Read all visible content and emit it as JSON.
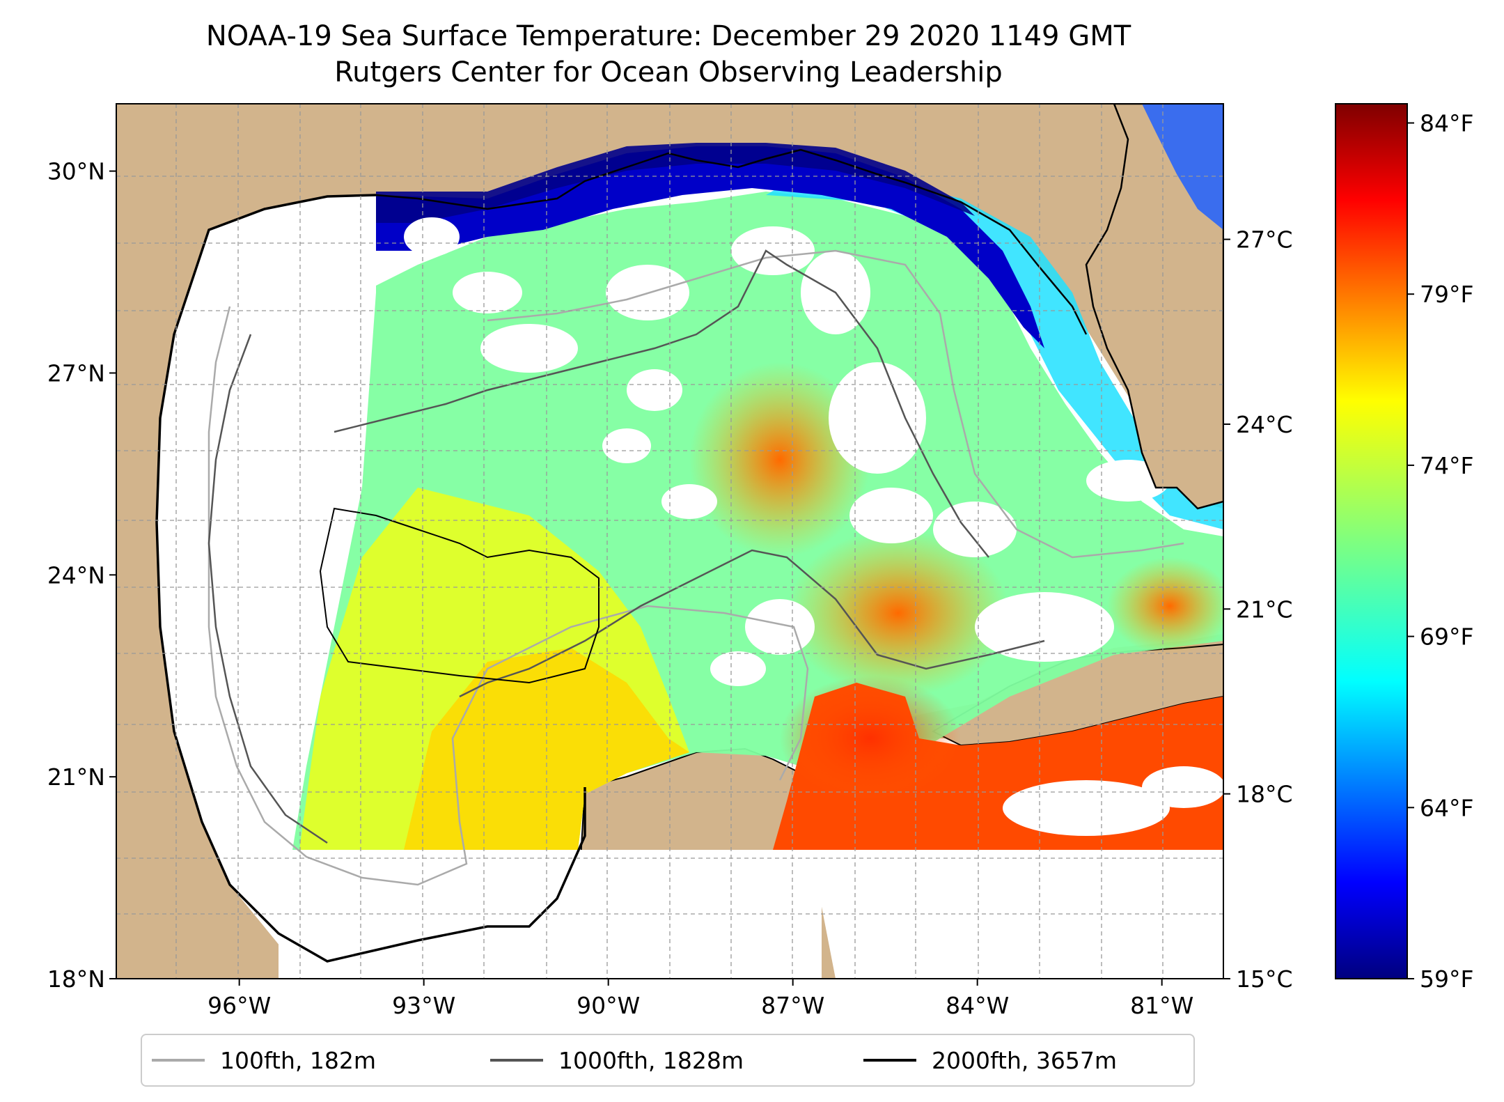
{
  "title": "NOAA-19 Sea Surface Temperature: December 29 2020 1149 GMT",
  "subtitle": "Rutgers Center for Ocean Observing Leadership",
  "map": {
    "lat_range": [
      18,
      31
    ],
    "lon_range": [
      -98,
      -80
    ],
    "lat_labels": [
      {
        "value": 18,
        "text": "18°N"
      },
      {
        "value": 21,
        "text": "21°N"
      },
      {
        "value": 24,
        "text": "24°N"
      },
      {
        "value": 27,
        "text": "27°N"
      },
      {
        "value": 30,
        "text": "30°N"
      }
    ],
    "lon_labels": [
      {
        "value": -96,
        "text": "96°W"
      },
      {
        "value": -93,
        "text": "93°W"
      },
      {
        "value": -90,
        "text": "90°W"
      },
      {
        "value": -87,
        "text": "87°W"
      },
      {
        "value": -84,
        "text": "84°W"
      },
      {
        "value": -81,
        "text": "81°W"
      }
    ],
    "land_color": "#d2b48c",
    "no_data_color": "#ffffff"
  },
  "colorbar": {
    "range_c": [
      15,
      29.2
    ],
    "celsius_ticks": [
      {
        "value": 15,
        "text": "15°C"
      },
      {
        "value": 18,
        "text": "18°C"
      },
      {
        "value": 21,
        "text": "21°C"
      },
      {
        "value": 24,
        "text": "24°C"
      },
      {
        "value": 27,
        "text": "27°C"
      }
    ],
    "fahrenheit_ticks": [
      {
        "value": 59,
        "text": "59°F"
      },
      {
        "value": 64,
        "text": "64°F"
      },
      {
        "value": 69,
        "text": "69°F"
      },
      {
        "value": 74,
        "text": "74°F"
      },
      {
        "value": 79,
        "text": "79°F"
      },
      {
        "value": 84,
        "text": "84°F"
      }
    ],
    "colormap": "jet"
  },
  "legend": [
    {
      "label": "100fth, 182m",
      "color": "#aaaaaa"
    },
    {
      "label": "1000fth, 1828m",
      "color": "#555555"
    },
    {
      "label": "2000fth, 3657m",
      "color": "#000000"
    }
  ]
}
